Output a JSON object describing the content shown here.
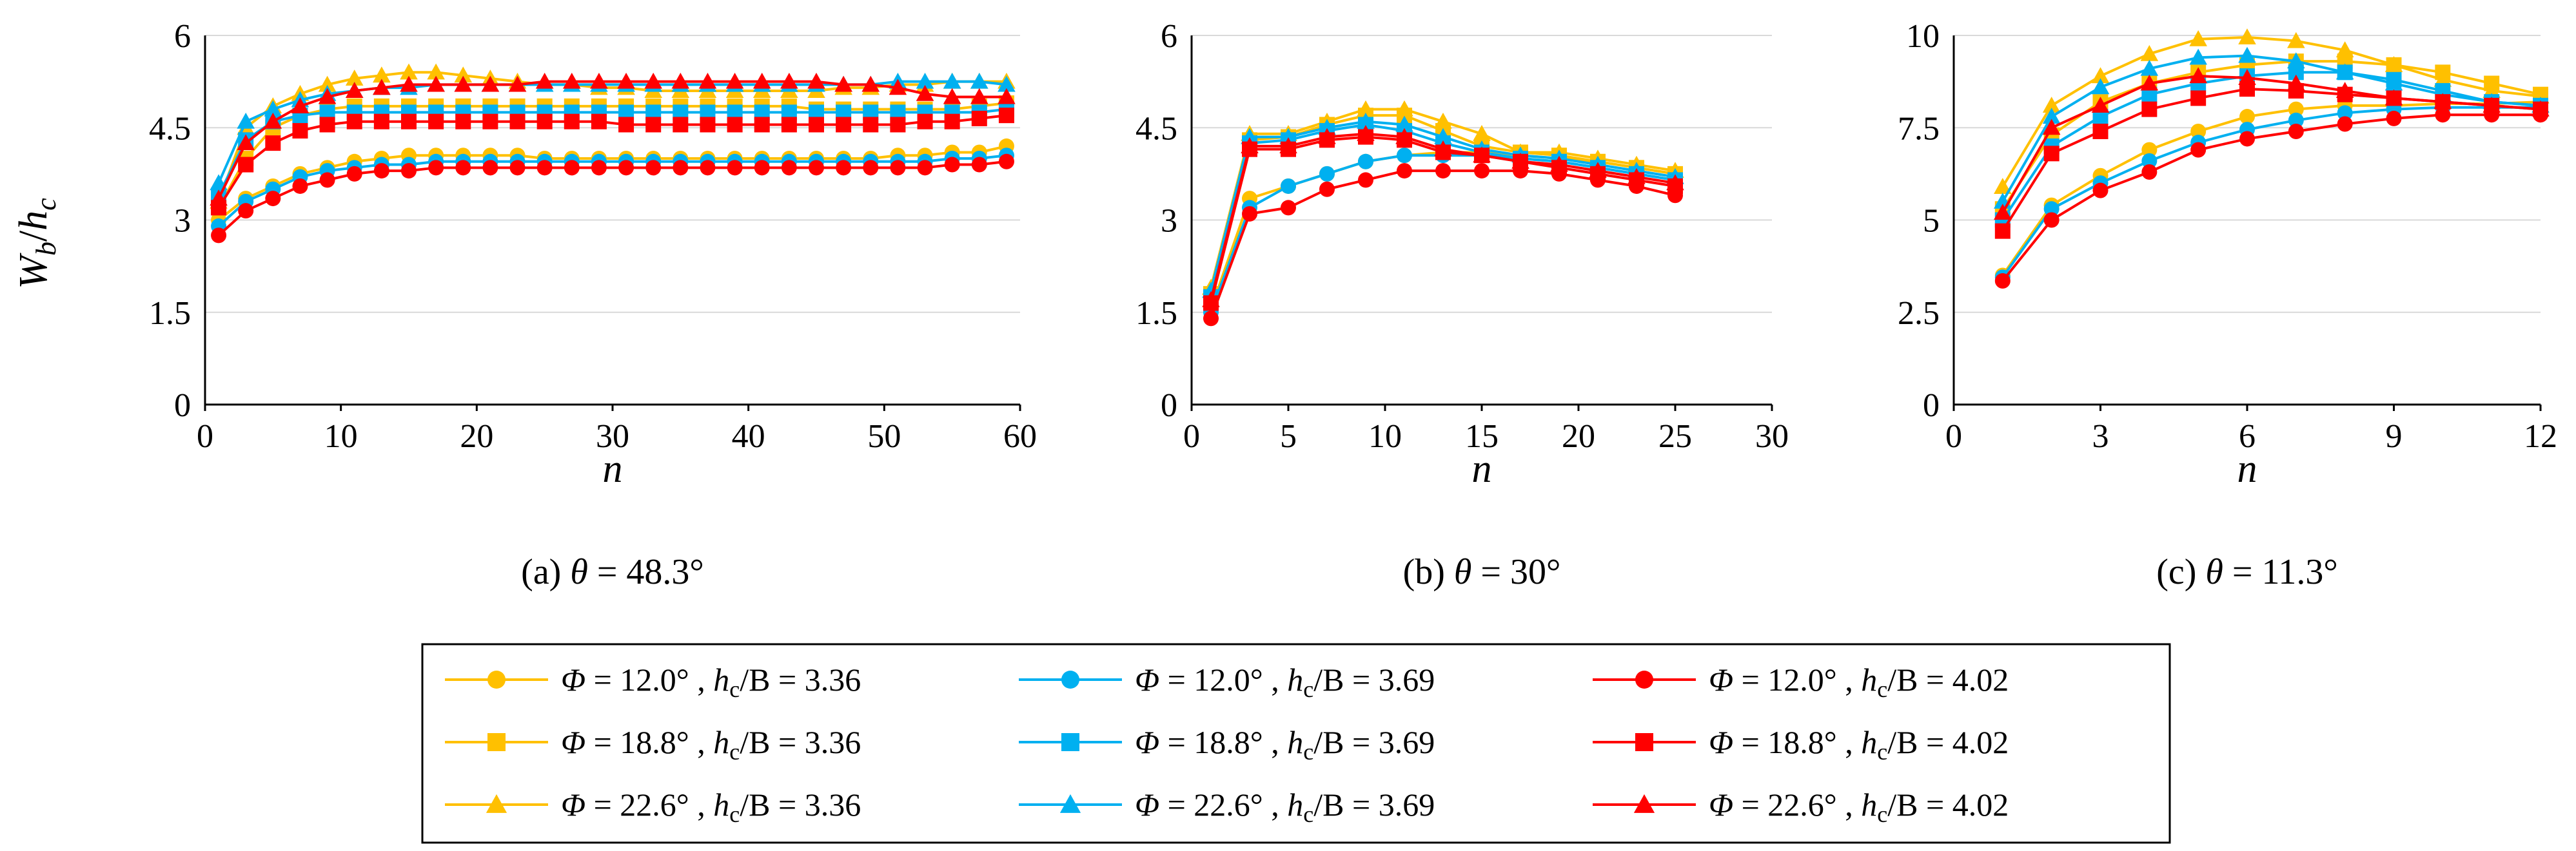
{
  "chart_data": [
    {
      "type": "line",
      "panel": "a",
      "caption": "(a) θ = 48.3°",
      "caption_parts": {
        "label": "(a) ",
        "symbol": "θ",
        "value": " = 48.3°"
      },
      "xlabel": "n",
      "ylabel": "Wb/hc",
      "xlim": [
        0,
        60
      ],
      "ylim": [
        0,
        6
      ],
      "xticks": [
        "0",
        "10",
        "20",
        "30",
        "40",
        "50",
        "60"
      ],
      "yticks": [
        "0",
        "1.5",
        "3",
        "4.5",
        "6"
      ],
      "x": [
        1,
        3,
        5,
        7,
        9,
        11,
        13,
        15,
        17,
        19,
        21,
        23,
        25,
        27,
        29,
        31,
        33,
        35,
        37,
        39,
        41,
        43,
        45,
        47,
        49,
        51,
        53,
        55,
        57,
        59
      ],
      "series": [
        {
          "name": "Φ = 12.0°, hc/B = 3.36",
          "values": [
            3.0,
            3.35,
            3.55,
            3.75,
            3.85,
            3.95,
            4.0,
            4.05,
            4.05,
            4.05,
            4.05,
            4.05,
            4.0,
            4.0,
            4.0,
            4.0,
            4.0,
            4.0,
            4.0,
            4.0,
            4.0,
            4.0,
            4.0,
            4.0,
            4.0,
            4.05,
            4.05,
            4.1,
            4.1,
            4.2
          ]
        },
        {
          "name": "Φ = 18.8°, hc/B = 3.36",
          "values": [
            3.2,
            4.0,
            4.5,
            4.7,
            4.8,
            4.85,
            4.85,
            4.85,
            4.85,
            4.85,
            4.85,
            4.85,
            4.85,
            4.85,
            4.85,
            4.85,
            4.85,
            4.85,
            4.85,
            4.85,
            4.85,
            4.85,
            4.8,
            4.8,
            4.8,
            4.8,
            4.8,
            4.8,
            4.85,
            4.9
          ]
        },
        {
          "name": "Φ = 22.6°, hc/B = 3.36",
          "values": [
            3.3,
            4.5,
            4.85,
            5.05,
            5.2,
            5.3,
            5.35,
            5.4,
            5.4,
            5.35,
            5.3,
            5.25,
            5.2,
            5.2,
            5.15,
            5.15,
            5.1,
            5.1,
            5.1,
            5.1,
            5.1,
            5.1,
            5.1,
            5.15,
            5.15,
            5.2,
            5.2,
            5.25,
            5.25,
            5.25
          ]
        },
        {
          "name": "Φ = 12.0°, hc/B = 3.69",
          "values": [
            2.9,
            3.3,
            3.5,
            3.7,
            3.8,
            3.85,
            3.9,
            3.9,
            3.95,
            3.95,
            3.95,
            3.95,
            3.95,
            3.95,
            3.95,
            3.95,
            3.95,
            3.95,
            3.95,
            3.95,
            3.95,
            3.95,
            3.95,
            3.95,
            3.95,
            3.95,
            3.95,
            4.0,
            4.0,
            4.05
          ]
        },
        {
          "name": "Φ = 18.8°, hc/B = 3.69",
          "values": [
            3.4,
            4.3,
            4.6,
            4.7,
            4.75,
            4.75,
            4.75,
            4.75,
            4.75,
            4.75,
            4.75,
            4.75,
            4.75,
            4.75,
            4.75,
            4.75,
            4.75,
            4.75,
            4.75,
            4.75,
            4.75,
            4.75,
            4.75,
            4.75,
            4.75,
            4.75,
            4.75,
            4.75,
            4.75,
            4.8
          ]
        },
        {
          "name": "Φ = 22.6°, hc/B = 3.69",
          "values": [
            3.6,
            4.6,
            4.8,
            4.95,
            5.05,
            5.1,
            5.15,
            5.15,
            5.2,
            5.2,
            5.2,
            5.2,
            5.2,
            5.2,
            5.2,
            5.2,
            5.2,
            5.2,
            5.2,
            5.2,
            5.2,
            5.2,
            5.2,
            5.2,
            5.2,
            5.25,
            5.25,
            5.25,
            5.25,
            5.2
          ]
        },
        {
          "name": "Φ = 12.0°, hc/B = 4.02",
          "values": [
            2.75,
            3.15,
            3.35,
            3.55,
            3.65,
            3.75,
            3.8,
            3.8,
            3.85,
            3.85,
            3.85,
            3.85,
            3.85,
            3.85,
            3.85,
            3.85,
            3.85,
            3.85,
            3.85,
            3.85,
            3.85,
            3.85,
            3.85,
            3.85,
            3.85,
            3.85,
            3.85,
            3.9,
            3.9,
            3.95
          ]
        },
        {
          "name": "Φ = 18.8°, hc/B = 4.02",
          "values": [
            3.2,
            3.9,
            4.25,
            4.45,
            4.55,
            4.6,
            4.6,
            4.6,
            4.6,
            4.6,
            4.6,
            4.6,
            4.6,
            4.6,
            4.6,
            4.55,
            4.55,
            4.55,
            4.55,
            4.55,
            4.55,
            4.55,
            4.55,
            4.55,
            4.55,
            4.55,
            4.6,
            4.6,
            4.65,
            4.7
          ]
        },
        {
          "name": "Φ = 22.6°, hc/B = 4.02",
          "values": [
            3.35,
            4.25,
            4.6,
            4.85,
            5.0,
            5.1,
            5.15,
            5.2,
            5.2,
            5.2,
            5.2,
            5.2,
            5.25,
            5.25,
            5.25,
            5.25,
            5.25,
            5.25,
            5.25,
            5.25,
            5.25,
            5.25,
            5.25,
            5.2,
            5.2,
            5.15,
            5.05,
            5.0,
            5.0,
            5.0
          ]
        }
      ]
    },
    {
      "type": "line",
      "panel": "b",
      "caption": "(b) θ = 30°",
      "caption_parts": {
        "label": "(b) ",
        "symbol": "θ",
        "value": " = 30°"
      },
      "xlabel": "n",
      "ylabel": "",
      "xlim": [
        0,
        30
      ],
      "ylim": [
        0,
        6
      ],
      "xticks": [
        "0",
        "5",
        "10",
        "15",
        "20",
        "25",
        "30"
      ],
      "yticks": [
        "0",
        "1.5",
        "3",
        "4.5",
        "6"
      ],
      "x": [
        1,
        3,
        5,
        7,
        9,
        11,
        13,
        15,
        17,
        19,
        21,
        23,
        25
      ],
      "series": [
        {
          "name": "Φ = 12.0°, hc/B = 3.36",
          "values": [
            1.55,
            3.35,
            3.55,
            3.75,
            3.95,
            4.05,
            4.1,
            4.1,
            4.05,
            4.0,
            3.95,
            3.85,
            3.75
          ]
        },
        {
          "name": "Φ = 18.8°, hc/B = 3.36",
          "values": [
            1.8,
            4.3,
            4.35,
            4.55,
            4.7,
            4.7,
            4.45,
            4.2,
            4.1,
            4.05,
            3.95,
            3.85,
            3.75
          ]
        },
        {
          "name": "Φ = 22.6°, hc/B = 3.36",
          "values": [
            1.9,
            4.4,
            4.4,
            4.6,
            4.8,
            4.8,
            4.6,
            4.4,
            4.1,
            4.1,
            4.0,
            3.9,
            3.8
          ]
        },
        {
          "name": "Φ = 12.0°, hc/B = 3.69",
          "values": [
            1.5,
            3.2,
            3.55,
            3.75,
            3.95,
            4.05,
            4.05,
            4.05,
            4.0,
            3.95,
            3.85,
            3.75,
            3.65
          ]
        },
        {
          "name": "Φ = 18.8°, hc/B = 3.69",
          "values": [
            1.75,
            4.25,
            4.3,
            4.45,
            4.55,
            4.45,
            4.25,
            4.1,
            4.0,
            3.95,
            3.85,
            3.75,
            3.65
          ]
        },
        {
          "name": "Φ = 22.6°, hc/B = 3.69",
          "values": [
            1.85,
            4.35,
            4.35,
            4.5,
            4.6,
            4.55,
            4.35,
            4.15,
            4.05,
            4.0,
            3.9,
            3.8,
            3.7
          ]
        },
        {
          "name": "Φ = 12.0°, hc/B = 4.02",
          "values": [
            1.4,
            3.1,
            3.2,
            3.5,
            3.65,
            3.8,
            3.8,
            3.8,
            3.8,
            3.75,
            3.65,
            3.55,
            3.4
          ]
        },
        {
          "name": "Φ = 18.8°, hc/B = 4.02",
          "values": [
            1.65,
            4.15,
            4.15,
            4.3,
            4.35,
            4.3,
            4.1,
            4.05,
            3.95,
            3.85,
            3.75,
            3.65,
            3.55
          ]
        },
        {
          "name": "Φ = 22.6°, hc/B = 4.02",
          "values": [
            1.7,
            4.2,
            4.2,
            4.35,
            4.4,
            4.35,
            4.15,
            4.05,
            3.95,
            3.9,
            3.8,
            3.7,
            3.6
          ]
        }
      ]
    },
    {
      "type": "line",
      "panel": "c",
      "caption": "(c) θ = 11.3°",
      "caption_parts": {
        "label": "(c) ",
        "symbol": "θ",
        "value": " = 11.3°"
      },
      "xlabel": "n",
      "ylabel": "",
      "xlim": [
        0,
        12
      ],
      "ylim": [
        0,
        10
      ],
      "xticks": [
        "0",
        "3",
        "6",
        "9",
        "12"
      ],
      "yticks": [
        "0",
        "2.5",
        "5",
        "7.5",
        "10"
      ],
      "x": [
        1,
        2,
        3,
        4,
        5,
        6,
        7,
        8,
        9,
        10,
        11,
        12
      ],
      "series": [
        {
          "name": "Φ = 12.0°, hc/B = 3.36",
          "values": [
            3.5,
            5.4,
            6.2,
            6.9,
            7.4,
            7.8,
            8.0,
            8.1,
            8.1,
            8.15,
            8.15,
            8.2
          ]
        },
        {
          "name": "Φ = 18.8°, hc/B = 3.36",
          "values": [
            5.3,
            7.3,
            8.2,
            8.7,
            9.0,
            9.2,
            9.3,
            9.3,
            9.2,
            9.0,
            8.7,
            8.4
          ]
        },
        {
          "name": "Φ = 22.6°, hc/B = 3.36",
          "values": [
            5.9,
            8.1,
            8.9,
            9.5,
            9.9,
            9.95,
            9.85,
            9.6,
            9.2,
            8.8,
            8.5,
            8.35
          ]
        },
        {
          "name": "Φ = 12.0°, hc/B = 3.69",
          "values": [
            3.45,
            5.3,
            6.0,
            6.6,
            7.1,
            7.45,
            7.7,
            7.9,
            8.0,
            8.05,
            8.05,
            8.05
          ]
        },
        {
          "name": "Φ = 18.8°, hc/B = 3.69",
          "values": [
            5.0,
            7.0,
            7.8,
            8.4,
            8.7,
            8.9,
            9.0,
            9.0,
            8.8,
            8.5,
            8.2,
            8.1
          ]
        },
        {
          "name": "Φ = 22.6°, hc/B = 3.69",
          "values": [
            5.5,
            7.8,
            8.6,
            9.1,
            9.4,
            9.45,
            9.3,
            9.0,
            8.7,
            8.4,
            8.2,
            8.1
          ]
        },
        {
          "name": "Φ = 12.0°, hc/B = 4.02",
          "values": [
            3.35,
            5.0,
            5.8,
            6.3,
            6.9,
            7.2,
            7.4,
            7.6,
            7.75,
            7.85,
            7.85,
            7.85
          ]
        },
        {
          "name": "Φ = 18.8°, hc/B = 4.02",
          "values": [
            4.7,
            6.8,
            7.4,
            8.0,
            8.3,
            8.55,
            8.5,
            8.4,
            8.3,
            8.2,
            8.1,
            8.0
          ]
        },
        {
          "name": "Φ = 22.6°, hc/B = 4.02",
          "values": [
            5.2,
            7.5,
            8.1,
            8.7,
            8.9,
            8.85,
            8.7,
            8.5,
            8.3,
            8.2,
            8.1,
            8.0
          ]
        }
      ]
    }
  ],
  "series_styles": [
    {
      "color": "#FFC000",
      "marker": "circle"
    },
    {
      "color": "#FFC000",
      "marker": "square"
    },
    {
      "color": "#FFC000",
      "marker": "triangle"
    },
    {
      "color": "#00B0F0",
      "marker": "circle"
    },
    {
      "color": "#00B0F0",
      "marker": "square"
    },
    {
      "color": "#00B0F0",
      "marker": "triangle"
    },
    {
      "color": "#FF0000",
      "marker": "circle"
    },
    {
      "color": "#FF0000",
      "marker": "square"
    },
    {
      "color": "#FF0000",
      "marker": "triangle"
    }
  ],
  "ylabel_parts": {
    "W": "W",
    "b": "b",
    "slash": "/",
    "h": "h",
    "c": "c"
  },
  "legend": {
    "entries": [
      {
        "phi_symbol": "Φ",
        "phi_text": " = 12.0°",
        "hc_h": "h",
        "hc_sub": "c",
        "hc_text": "/B = 3.36"
      },
      {
        "phi_symbol": "Φ",
        "phi_text": " = 18.8°",
        "hc_h": "h",
        "hc_sub": "c",
        "hc_text": "/B = 3.36"
      },
      {
        "phi_symbol": "Φ",
        "phi_text": " = 22.6°",
        "hc_h": "h",
        "hc_sub": "c",
        "hc_text": "/B = 3.36"
      },
      {
        "phi_symbol": "Φ",
        "phi_text": " = 12.0°",
        "hc_h": "h",
        "hc_sub": "c",
        "hc_text": "/B = 3.69"
      },
      {
        "phi_symbol": "Φ",
        "phi_text": " = 18.8°",
        "hc_h": "h",
        "hc_sub": "c",
        "hc_text": "/B = 3.69"
      },
      {
        "phi_symbol": "Φ",
        "phi_text": " = 22.6°",
        "hc_h": "h",
        "hc_sub": "c",
        "hc_text": "/B = 3.69"
      },
      {
        "phi_symbol": "Φ",
        "phi_text": " = 12.0°",
        "hc_h": "h",
        "hc_sub": "c",
        "hc_text": "/B = 4.02"
      },
      {
        "phi_symbol": "Φ",
        "phi_text": " = 18.8°",
        "hc_h": "h",
        "hc_sub": "c",
        "hc_text": "/B = 4.02"
      },
      {
        "phi_symbol": "Φ",
        "phi_text": " = 22.6°",
        "hc_h": "h",
        "hc_sub": "c",
        "hc_text": "/B = 4.02"
      }
    ]
  }
}
